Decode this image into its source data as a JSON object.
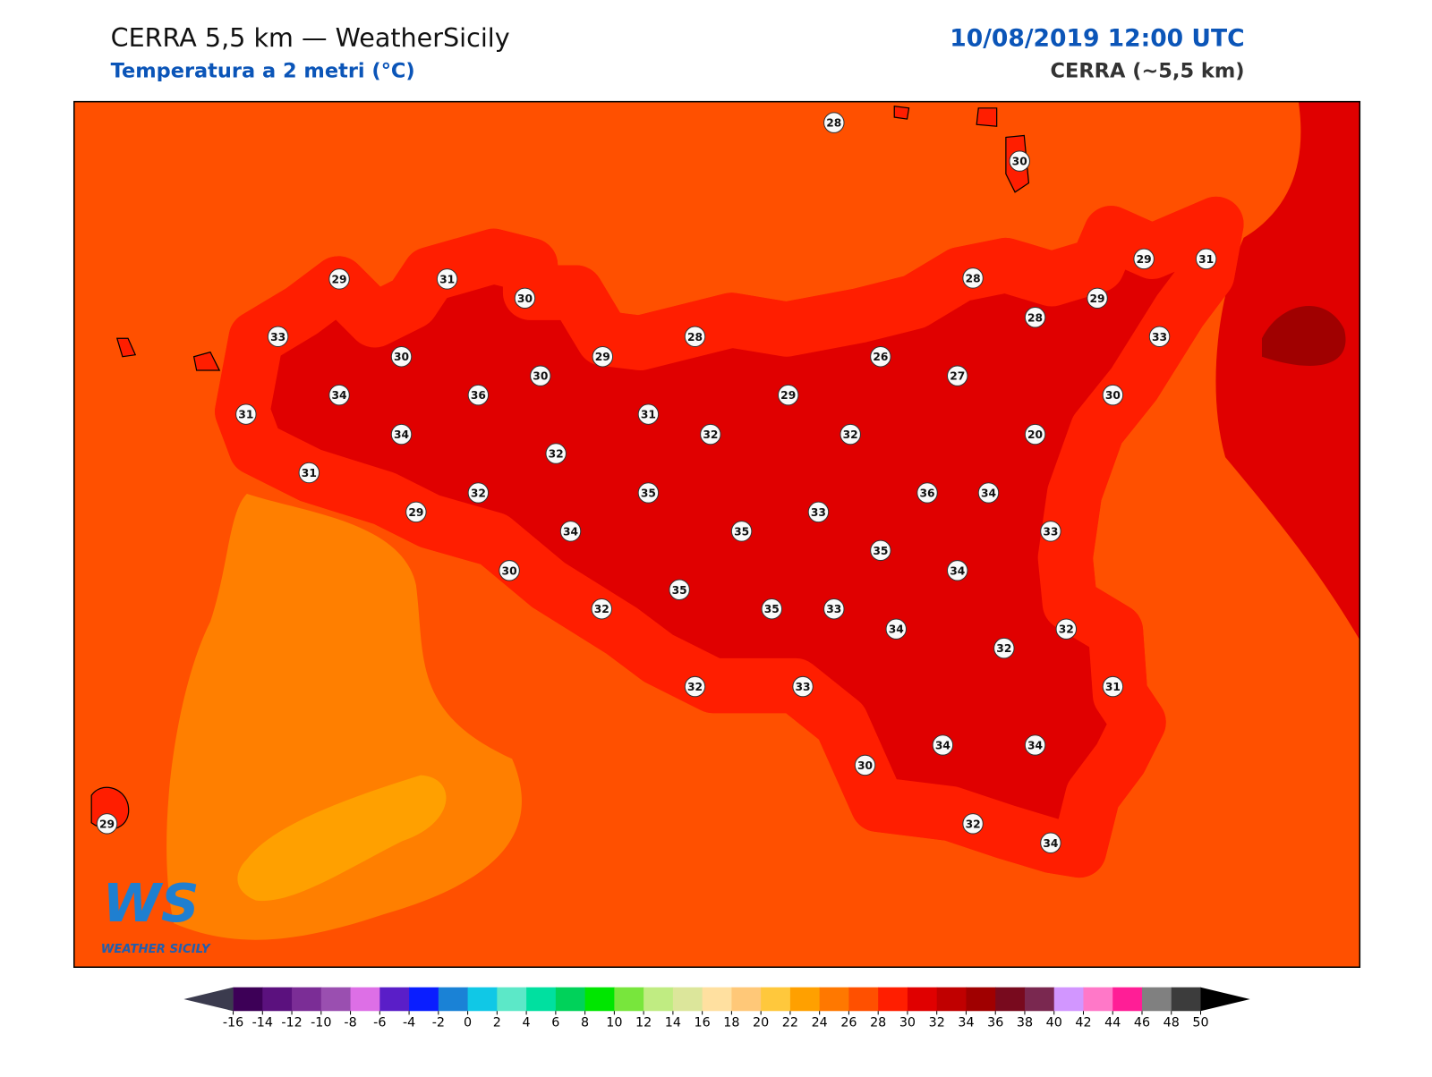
{
  "header": {
    "title": "CERRA 5,5 km — WeatherSicily",
    "subtitle": "Temperatura a 2 metri (°C)",
    "date": "10/08/2019 12:00 UTC",
    "model": "CERRA (~5,5 km)"
  },
  "logo": {
    "mark": "WS",
    "name": "WEATHER SICILY"
  },
  "stations": [
    28,
    30,
    29,
    31,
    30,
    33,
    30,
    30,
    29,
    28,
    34,
    36,
    31,
    34,
    31,
    32,
    29,
    26,
    28,
    28,
    29,
    29,
    31,
    33,
    27,
    30,
    20,
    32,
    32,
    31,
    32,
    35,
    36,
    34,
    29,
    33,
    34,
    35,
    33,
    35,
    30,
    34,
    35,
    32,
    35,
    33,
    34,
    32,
    32,
    32,
    33,
    31,
    34,
    34,
    30,
    32,
    34,
    29
  ],
  "colorbar": {
    "ticks": [
      -16,
      -14,
      -12,
      -10,
      -8,
      -6,
      -4,
      -2,
      0,
      2,
      4,
      6,
      8,
      10,
      12,
      14,
      16,
      18,
      20,
      22,
      24,
      26,
      28,
      30,
      32,
      34,
      36,
      38,
      40,
      42,
      44,
      46,
      48,
      50
    ],
    "colors": [
      "#3d0057",
      "#5b117e",
      "#7b2d96",
      "#9a4fb0",
      "#dd6fe6",
      "#5a1ec8",
      "#0a1eff",
      "#1a82d6",
      "#10c8e6",
      "#5ce8c8",
      "#00e0a0",
      "#00d25a",
      "#00e600",
      "#78e63c",
      "#c0ec82",
      "#dce69b",
      "#ffe0a0",
      "#ffc878",
      "#ffc83c",
      "#ffa000",
      "#ff7800",
      "#ff5000",
      "#ff1e00",
      "#e00000",
      "#c00000",
      "#a00000",
      "#780a1e",
      "#7a2850",
      "#d296ff",
      "#ff78c8",
      "#ff1e96",
      "#808080",
      "#3c3c3c"
    ],
    "under_color": "#3b3b4e",
    "over_color": "#000000"
  }
}
